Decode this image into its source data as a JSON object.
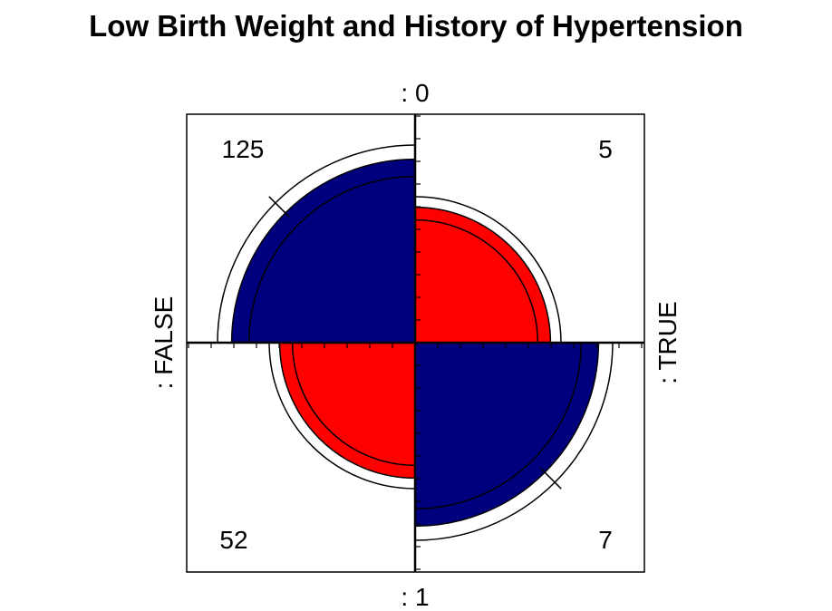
{
  "chart_data": {
    "type": "fourfold",
    "title": "Low Birth Weight and History of Hypertension",
    "row_labels": [
      ": 0",
      ": 1"
    ],
    "col_labels": [
      ": FALSE",
      ": TRUE"
    ],
    "cells": [
      {
        "row": 0,
        "col": 0,
        "label": "125",
        "count": 125,
        "color": "#00007F"
      },
      {
        "row": 0,
        "col": 1,
        "label": "5",
        "count": 5,
        "color": "#FF0000"
      },
      {
        "row": 1,
        "col": 0,
        "label": "52",
        "count": 52,
        "color": "#FF0000"
      },
      {
        "row": 1,
        "col": 1,
        "label": "7",
        "count": 7,
        "color": "#00007F"
      }
    ],
    "confidence_rings": true,
    "colors": {
      "positive": "#00007F",
      "negative": "#FF0000",
      "frame": "#000000",
      "ring": "#000000"
    }
  }
}
